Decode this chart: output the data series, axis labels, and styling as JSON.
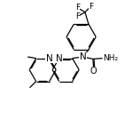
{
  "bg_color": "#ffffff",
  "line_color": "#000000",
  "line_width": 0.9,
  "font_size": 6.5,
  "fig_width": 1.58,
  "fig_height": 1.43,
  "dpi": 100,
  "xlim": [
    0,
    10
  ],
  "ylim": [
    0,
    9
  ]
}
